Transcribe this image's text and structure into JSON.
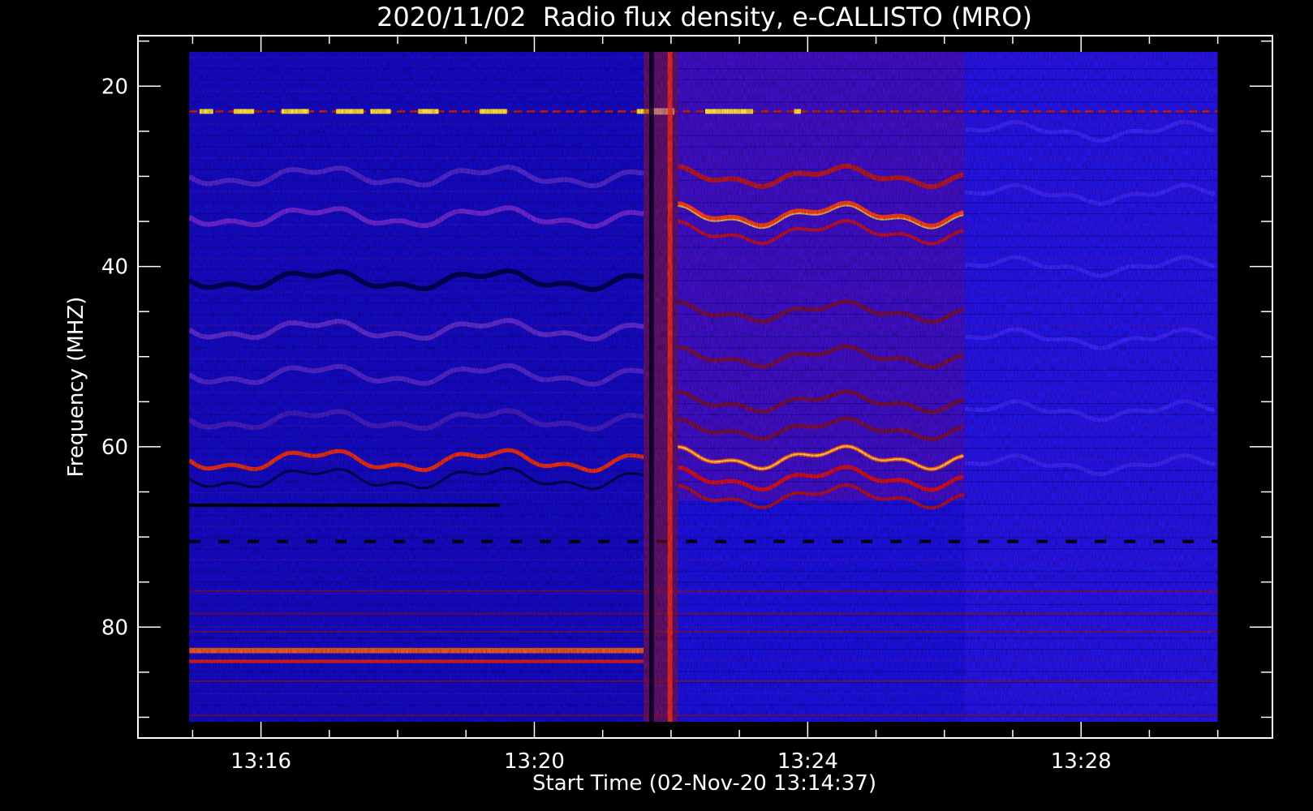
{
  "chart_data": {
    "type": "heatmap",
    "title": "2020/11/02  Radio flux density, e-CALLISTO (MRO)",
    "xlabel": "Start Time (02-Nov-20 13:14:37)",
    "ylabel": "Frequency (MHZ)",
    "x_ticks": [
      "13:16",
      "13:20",
      "13:24",
      "13:28"
    ],
    "x_tick_minutes": [
      16,
      20,
      24,
      28
    ],
    "y_ticks": [
      20,
      40,
      60,
      80
    ],
    "xlim_minutes": [
      14.2,
      30.8
    ],
    "ylim_mhz": [
      14.4,
      92.3
    ],
    "data_time_range_minutes": [
      14.95,
      30.0
    ],
    "data_freq_range_mhz": [
      16.2,
      90.5
    ],
    "colormap": [
      "#000000",
      "#0000ff",
      "#ff0000",
      "#ffff00",
      "#ffffff"
    ],
    "features": {
      "broadband_burst_minutes": [
        21.6,
        22.1
      ],
      "bright_narrowband_line_mhz": 22.8,
      "wavy_band_centers_mhz": [
        30,
        34.5,
        61.5,
        64.5
      ],
      "wavy_band_active_until_minute": 26.3,
      "interference_band_mhz": [
        82.5,
        83.8
      ],
      "dark_line_mhz": 66.5
    }
  }
}
